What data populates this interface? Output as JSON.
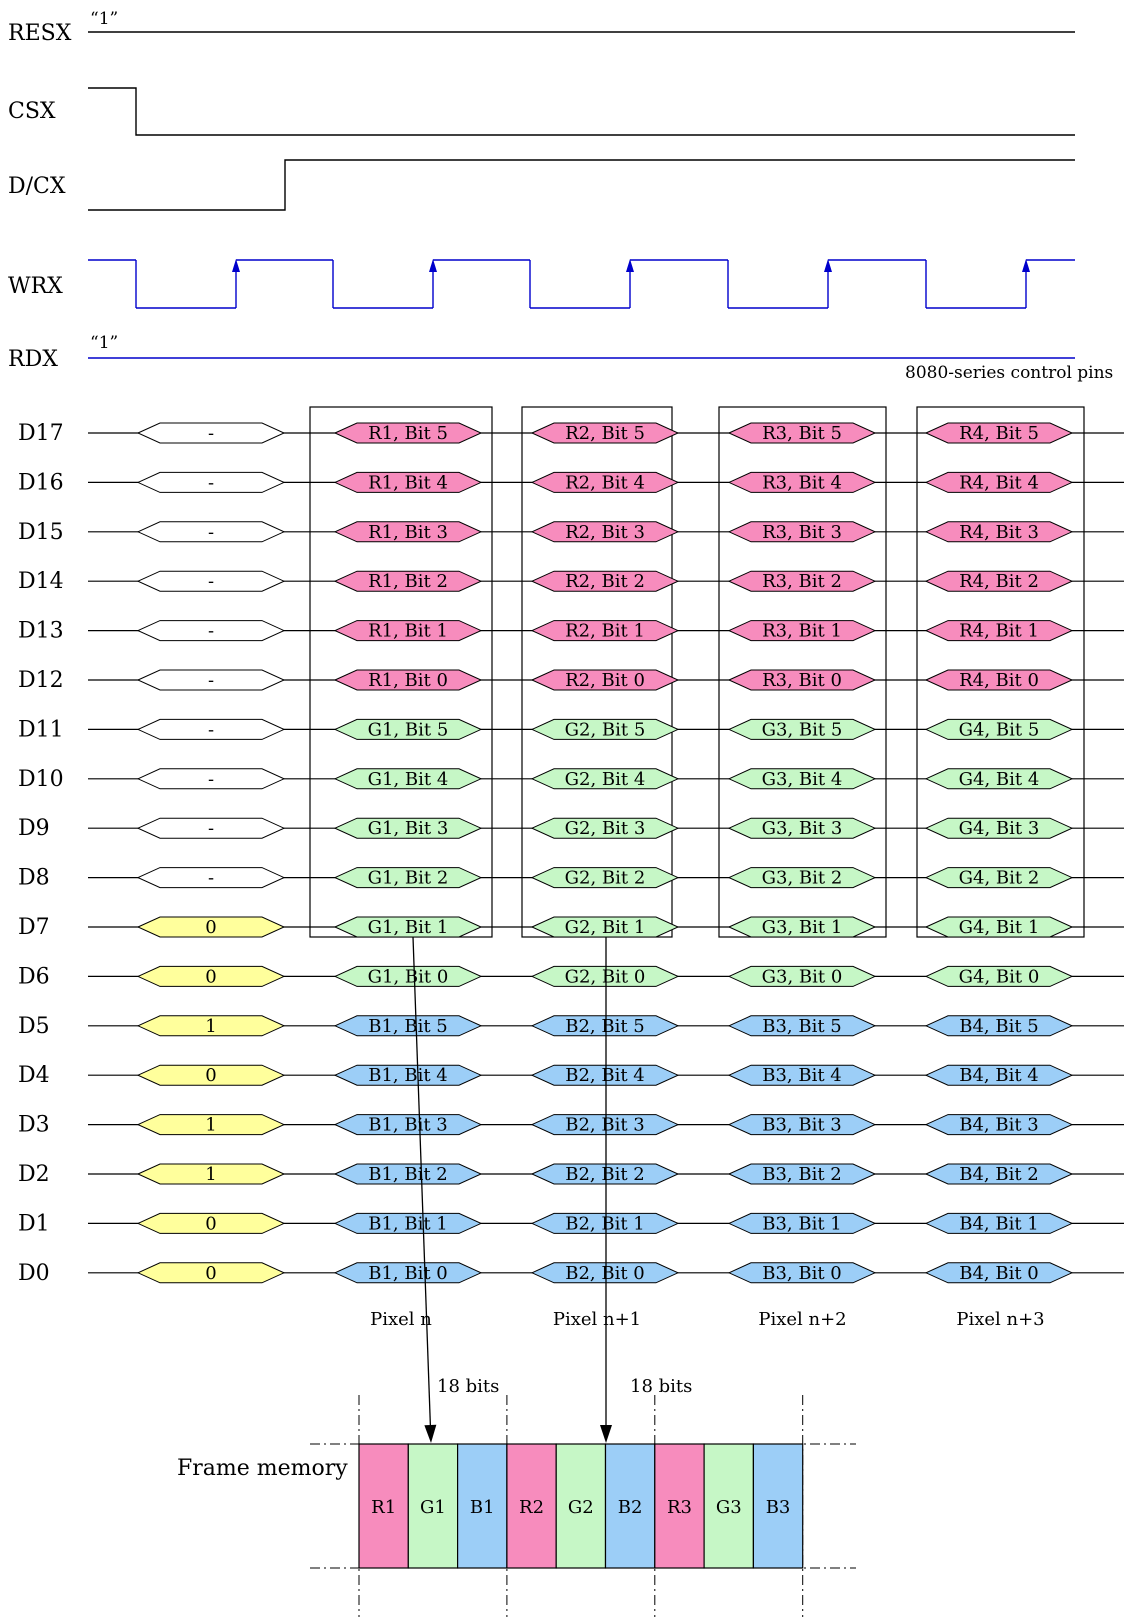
{
  "colors": {
    "line": "#000000",
    "wrx": "#0000cc",
    "rdx": "#0000cc",
    "red": "#f78cbd",
    "green": "#c6f7c6",
    "blue": "#9ccef7",
    "yellow": "#ffff9c",
    "empty": "#ffffff"
  },
  "control_signals": [
    {
      "name": "RESX",
      "level_note": "“1”"
    },
    {
      "name": "CSX",
      "level_note": ""
    },
    {
      "name": "D/CX",
      "level_note": ""
    },
    {
      "name": "WRX",
      "level_note": ""
    },
    {
      "name": "RDX",
      "level_note": "“1”"
    }
  ],
  "control_caption": "8080-series control pins",
  "command_column": {
    "values": [
      "-",
      "-",
      "-",
      "-",
      "-",
      "-",
      "-",
      "-",
      "-",
      "-",
      "0",
      "0",
      "1",
      "0",
      "1",
      "1",
      "0",
      "0"
    ]
  },
  "data_lines": [
    {
      "name": "D17",
      "color_key": "red",
      "bit_label": "Bit 5"
    },
    {
      "name": "D16",
      "color_key": "red",
      "bit_label": "Bit 4"
    },
    {
      "name": "D15",
      "color_key": "red",
      "bit_label": "Bit 3"
    },
    {
      "name": "D14",
      "color_key": "red",
      "bit_label": "Bit 2"
    },
    {
      "name": "D13",
      "color_key": "red",
      "bit_label": "Bit 1"
    },
    {
      "name": "D12",
      "color_key": "red",
      "bit_label": "Bit 0"
    },
    {
      "name": "D11",
      "color_key": "green",
      "bit_label": "Bit 5"
    },
    {
      "name": "D10",
      "color_key": "green",
      "bit_label": "Bit 4"
    },
    {
      "name": "D9",
      "color_key": "green",
      "bit_label": "Bit 3"
    },
    {
      "name": "D8",
      "color_key": "green",
      "bit_label": "Bit 2"
    },
    {
      "name": "D7",
      "color_key": "green",
      "bit_label": "Bit 1"
    },
    {
      "name": "D6",
      "color_key": "green",
      "bit_label": "Bit 0"
    },
    {
      "name": "D5",
      "color_key": "blue",
      "bit_label": "Bit 5"
    },
    {
      "name": "D4",
      "color_key": "blue",
      "bit_label": "Bit 4"
    },
    {
      "name": "D3",
      "color_key": "blue",
      "bit_label": "Bit 3"
    },
    {
      "name": "D2",
      "color_key": "blue",
      "bit_label": "Bit 2"
    },
    {
      "name": "D1",
      "color_key": "blue",
      "bit_label": "Bit 1"
    },
    {
      "name": "D0",
      "color_key": "blue",
      "bit_label": "Bit 0"
    }
  ],
  "pixels": [
    {
      "label": "Pixel n",
      "red": "R1",
      "green": "G1",
      "blue": "B1"
    },
    {
      "label": "Pixel n+1",
      "red": "R2",
      "green": "G2",
      "blue": "B2"
    },
    {
      "label": "Pixel n+2",
      "red": "R3",
      "green": "G3",
      "blue": "B3"
    },
    {
      "label": "Pixel n+3",
      "red": "R4",
      "green": "G4",
      "blue": "B4"
    }
  ],
  "arrows": [
    {
      "label": "18 bits"
    },
    {
      "label": "18 bits"
    }
  ],
  "frame_memory": {
    "label": "Frame memory",
    "cells": [
      {
        "text": "R1",
        "color_key": "red"
      },
      {
        "text": "G1",
        "color_key": "green"
      },
      {
        "text": "B1",
        "color_key": "blue"
      },
      {
        "text": "R2",
        "color_key": "red"
      },
      {
        "text": "G2",
        "color_key": "green"
      },
      {
        "text": "B2",
        "color_key": "blue"
      },
      {
        "text": "R3",
        "color_key": "red"
      },
      {
        "text": "G3",
        "color_key": "green"
      },
      {
        "text": "B3",
        "color_key": "blue"
      }
    ]
  }
}
